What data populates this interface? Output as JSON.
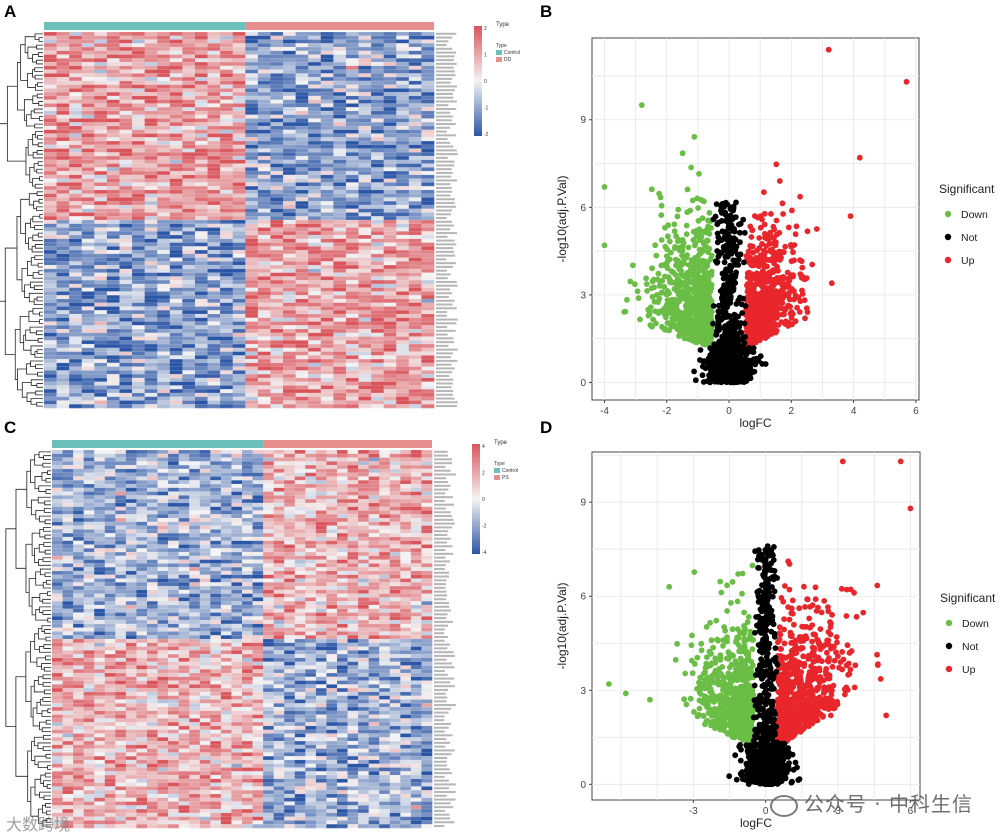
{
  "panels": {
    "a": "A",
    "b": "B",
    "c": "C",
    "d": "D"
  },
  "chart_data": [
    {
      "type": "heatmap",
      "panel": "A",
      "legend_title": "Type",
      "type_legend": [
        "Control",
        "DD"
      ],
      "scale_ticks": [
        "2",
        "1",
        "0",
        "-1",
        "-2"
      ],
      "colors": {
        "low": "#2b55a5",
        "mid": "#f4f4f4",
        "high": "#d9545b",
        "control": "#6cc0bc",
        "case": "#e58f8f"
      },
      "n_control": 16,
      "n_case": 15,
      "n_genes": 100,
      "up_in_control_rows": 50
    },
    {
      "type": "scatter",
      "panel": "B",
      "xlabel": "logFC",
      "ylabel": "-log10(adj.P.Val)",
      "xticks": [
        -4,
        -2,
        0,
        2,
        4,
        6
      ],
      "yticks": [
        0,
        3,
        6,
        9
      ],
      "xlim": [
        -4.4,
        6.1
      ],
      "ylim": [
        -0.6,
        11.8
      ],
      "legend_title": "Significant",
      "legend": [
        "Down",
        "Not",
        "Up"
      ],
      "colors": {
        "Down": "#6abd45",
        "Not": "#000000",
        "Up": "#e8262b"
      },
      "notable_points": [
        {
          "x": 3.2,
          "y": 11.4,
          "group": "Up"
        },
        {
          "x": 5.7,
          "y": 10.3,
          "group": "Up"
        },
        {
          "x": -2.8,
          "y": 9.5,
          "group": "Down"
        },
        {
          "x": 4.2,
          "y": 7.7,
          "group": "Up"
        },
        {
          "x": 3.9,
          "y": 5.7,
          "group": "Up"
        },
        {
          "x": -4.0,
          "y": 6.7,
          "group": "Down"
        },
        {
          "x": -4.0,
          "y": 4.7,
          "group": "Down"
        },
        {
          "x": 3.3,
          "y": 3.4,
          "group": "Up"
        }
      ]
    },
    {
      "type": "heatmap",
      "panel": "C",
      "legend_title": "Type",
      "type_legend": [
        "Control",
        "PS"
      ],
      "scale_ticks": [
        "4",
        "2",
        "0",
        "-2",
        "-4"
      ],
      "colors": {
        "low": "#2b55a5",
        "mid": "#f4f4f4",
        "high": "#d9545b",
        "control": "#6cc0bc",
        "case": "#e58f8f"
      },
      "n_control": 20,
      "n_case": 16,
      "n_genes": 100,
      "up_in_case_rows": 50
    },
    {
      "type": "scatter",
      "panel": "D",
      "xlabel": "logFC",
      "ylabel": "-log10(adj.P.Val)",
      "xticks": [
        -3,
        0,
        3,
        6
      ],
      "yticks": [
        0,
        3,
        6,
        9
      ],
      "xlim": [
        -7.2,
        6.4
      ],
      "ylim": [
        -0.5,
        10.6
      ],
      "legend_title": "Significant",
      "legend": [
        "Down",
        "Not",
        "Up"
      ],
      "colors": {
        "Down": "#6abd45",
        "Not": "#000000",
        "Up": "#e8262b"
      },
      "notable_points": [
        {
          "x": 3.2,
          "y": 10.3,
          "group": "Up"
        },
        {
          "x": 5.6,
          "y": 10.3,
          "group": "Up"
        },
        {
          "x": 6.0,
          "y": 8.8,
          "group": "Up"
        },
        {
          "x": -6.5,
          "y": 3.2,
          "group": "Down"
        },
        {
          "x": -5.8,
          "y": 2.9,
          "group": "Down"
        },
        {
          "x": -4.8,
          "y": 2.7,
          "group": "Down"
        },
        {
          "x": -4.0,
          "y": 6.3,
          "group": "Down"
        },
        {
          "x": 5.0,
          "y": 2.2,
          "group": "Up"
        },
        {
          "x": 2.7,
          "y": 2.2,
          "group": "Up"
        }
      ]
    }
  ],
  "watermark": {
    "text": "公众号 · 中科生信",
    "small": "大数跨境"
  }
}
